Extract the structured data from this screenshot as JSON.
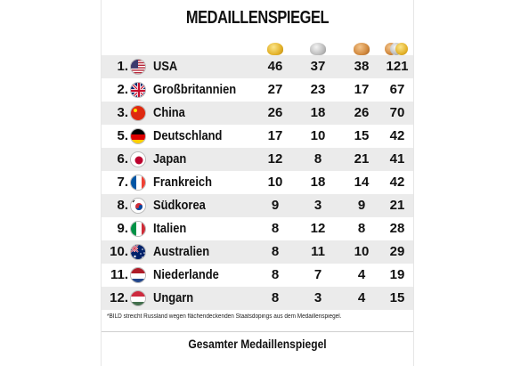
{
  "title": "MEDAILLENSPIEGEL",
  "medal_icons": [
    "gold-medal-icon",
    "silver-medal-icon",
    "bronze-medal-icon",
    "total-medals-icon"
  ],
  "rows": [
    {
      "rank": "1.",
      "country": "USA",
      "gold": "46",
      "silver": "37",
      "bronze": "38",
      "total": "121",
      "flag": "us-flag-icon"
    },
    {
      "rank": "2.",
      "country": "Großbritannien",
      "gold": "27",
      "silver": "23",
      "bronze": "17",
      "total": "67",
      "flag": "gb-flag-icon"
    },
    {
      "rank": "3.",
      "country": "China",
      "gold": "26",
      "silver": "18",
      "bronze": "26",
      "total": "70",
      "flag": "cn-flag-icon"
    },
    {
      "rank": "5.",
      "country": "Deutschland",
      "gold": "17",
      "silver": "10",
      "bronze": "15",
      "total": "42",
      "flag": "de-flag-icon"
    },
    {
      "rank": "6.",
      "country": "Japan",
      "gold": "12",
      "silver": "8",
      "bronze": "21",
      "total": "41",
      "flag": "jp-flag-icon"
    },
    {
      "rank": "7.",
      "country": "Frankreich",
      "gold": "10",
      "silver": "18",
      "bronze": "14",
      "total": "42",
      "flag": "fr-flag-icon"
    },
    {
      "rank": "8.",
      "country": "Südkorea",
      "gold": "9",
      "silver": "3",
      "bronze": "9",
      "total": "21",
      "flag": "kr-flag-icon"
    },
    {
      "rank": "9.",
      "country": "Italien",
      "gold": "8",
      "silver": "12",
      "bronze": "8",
      "total": "28",
      "flag": "it-flag-icon"
    },
    {
      "rank": "10.",
      "country": "Australien",
      "gold": "8",
      "silver": "11",
      "bronze": "10",
      "total": "29",
      "flag": "au-flag-icon"
    },
    {
      "rank": "11.",
      "country": "Niederlande",
      "gold": "8",
      "silver": "7",
      "bronze": "4",
      "total": "19",
      "flag": "nl-flag-icon"
    },
    {
      "rank": "12.",
      "country": "Ungarn",
      "gold": "8",
      "silver": "3",
      "bronze": "4",
      "total": "15",
      "flag": "hu-flag-icon"
    }
  ],
  "footnote": "*BILD streicht Russland wegen flächendeckenden Staatsdopings aus dem Medaillenspiegel.",
  "bottom_link": "Gesamter Medaillenspiegel"
}
